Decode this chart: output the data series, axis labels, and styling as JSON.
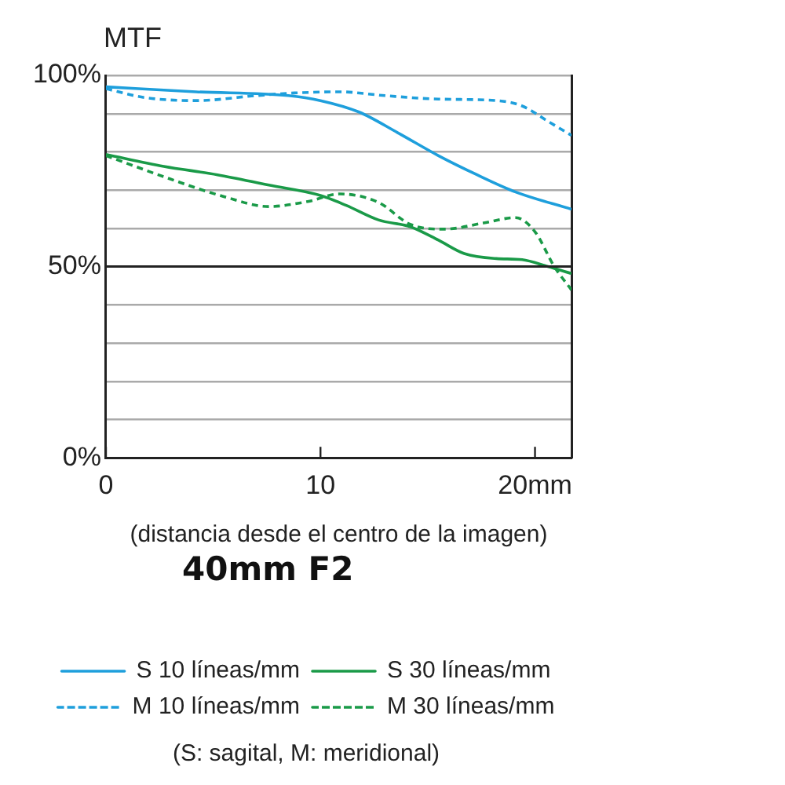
{
  "chart_data": {
    "type": "line",
    "ylabel": "MTF",
    "xlabel": "(distancia desde el centro de la imagen)",
    "title": "40mm F2",
    "annotations": [
      "(S: sagital, M: meridional)"
    ],
    "xlim": [
      0,
      21.7
    ],
    "xticks": [
      0,
      10,
      {
        "value": 20,
        "label": "20mm"
      }
    ],
    "ylim": [
      0,
      100
    ],
    "yticks": [
      {
        "value": 0,
        "label": "0%"
      },
      {
        "value": 10,
        "label": null
      },
      {
        "value": 20,
        "label": null
      },
      {
        "value": 30,
        "label": null
      },
      {
        "value": 40,
        "label": null
      },
      {
        "value": 50,
        "label": "50%"
      },
      {
        "value": 60,
        "label": null
      },
      {
        "value": 70,
        "label": null
      },
      {
        "value": 80,
        "label": null
      },
      {
        "value": 90,
        "label": null
      },
      {
        "value": 100,
        "label": "100%"
      }
    ],
    "grid": "y",
    "legend": "bottom",
    "marker": "none",
    "ref_lines": [
      {
        "axis": "y",
        "value": 50,
        "color": "#222222"
      }
    ],
    "series": [
      {
        "name": "S 10 líneas/mm",
        "color": "#1e9fdc",
        "line_style": "solid",
        "x": [
          0,
          4.2,
          8.5,
          10,
          11.8,
          13.6,
          15.5,
          17.3,
          19.1,
          21.7
        ],
        "values": [
          97,
          95.7,
          94.7,
          93.4,
          90.4,
          85,
          79,
          74,
          69.5,
          65
        ]
      },
      {
        "name": "S 30 líneas/mm",
        "color": "#1a9a48",
        "line_style": "solid",
        "x": [
          0,
          2.7,
          5.2,
          7.6,
          10,
          11.2,
          12.7,
          14.2,
          15.5,
          16.7,
          18.2,
          19.4,
          20.6,
          21.7
        ],
        "values": [
          79.3,
          76.2,
          74,
          71.3,
          68.6,
          66,
          62.2,
          60.4,
          56.9,
          53.4,
          52.1,
          51.8,
          50,
          48.2
        ]
      },
      {
        "name": "M 10 líneas/mm",
        "color": "#1e9fdc",
        "line_style": "dashed",
        "x": [
          0,
          1.8,
          4.2,
          7,
          8.8,
          10.9,
          13,
          15.5,
          18.2,
          19.4,
          20.6,
          21.7
        ],
        "values": [
          96.5,
          94.2,
          93.4,
          94.7,
          95.4,
          95.7,
          94.7,
          93.8,
          93.4,
          92,
          88,
          84.3
        ]
      },
      {
        "name": "M 30 líneas/mm",
        "color": "#1a9a48",
        "line_style": "dashed",
        "x": [
          0,
          3,
          5.5,
          7.6,
          9.4,
          10.9,
          12.7,
          14.2,
          15.8,
          17.6,
          19.1,
          20,
          20.9,
          21.7
        ],
        "values": [
          79,
          72.9,
          68.3,
          65.7,
          67,
          69,
          66.8,
          61,
          59.8,
          61.4,
          62.8,
          59.1,
          50,
          43.9
        ]
      }
    ]
  }
}
